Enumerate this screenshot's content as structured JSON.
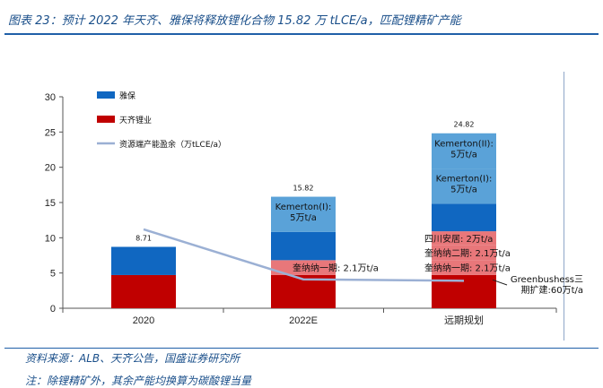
{
  "figure": {
    "title": "图表 23：预计 2022 年天齐、雅保将释放锂化合物 15.82 万 tLCE/a，匹配锂精矿产能",
    "source": "资料来源：ALB、天齐公告，国盛证券研究所",
    "note": "注：除锂精矿外，其余产能均换算为碳酸锂当量"
  },
  "colors": {
    "yabao": "#1067c1",
    "tianqi": "#c00000",
    "future_light": "#5aa2d8",
    "future_pink": "#e8777a",
    "line": "#9bb0d4"
  },
  "chart_data": {
    "type": "bar",
    "stacked": true,
    "categories": [
      "2020",
      "2022E",
      "远期规划"
    ],
    "ylim": [
      0,
      30
    ],
    "yticks": [
      0,
      5,
      10,
      15,
      20,
      25,
      30
    ],
    "legend": [
      {
        "name": "雅保",
        "kind": "bar",
        "color": "#1067c1"
      },
      {
        "name": "天齐锂业",
        "kind": "bar",
        "color": "#c00000"
      },
      {
        "name": "资源端产能盈余（万tLCE/a）",
        "kind": "line",
        "color": "#9bb0d4"
      }
    ],
    "segments": [
      {
        "category": 0,
        "y0": 0,
        "y1": 4.71,
        "color": "#c00000",
        "label": ""
      },
      {
        "category": 0,
        "y0": 4.71,
        "y1": 8.71,
        "color": "#1067c1",
        "label": ""
      },
      {
        "category": 1,
        "y0": 0,
        "y1": 4.71,
        "color": "#c00000",
        "label": ""
      },
      {
        "category": 1,
        "y0": 4.71,
        "y1": 6.82,
        "color": "#e8777a",
        "label": "奎纳纳一期: 2.1万t/a"
      },
      {
        "category": 1,
        "y0": 6.82,
        "y1": 10.82,
        "color": "#1067c1",
        "label": ""
      },
      {
        "category": 1,
        "y0": 10.82,
        "y1": 15.82,
        "color": "#5aa2d8",
        "label": "Kemerton(I):\n5万t/a"
      },
      {
        "category": 2,
        "y0": 0,
        "y1": 4.71,
        "color": "#c00000",
        "label": ""
      },
      {
        "category": 2,
        "y0": 4.71,
        "y1": 6.82,
        "color": "#e8777a",
        "label": "奎纳纳一期: 2.1万t/a"
      },
      {
        "category": 2,
        "y0": 6.82,
        "y1": 8.92,
        "color": "#e8777a",
        "label": "奎纳纳二期: 2.1万t/a"
      },
      {
        "category": 2,
        "y0": 8.92,
        "y1": 10.92,
        "color": "#e8777a",
        "label": "四川安居: 2万t/a"
      },
      {
        "category": 2,
        "y0": 10.92,
        "y1": 14.82,
        "color": "#1067c1",
        "label": ""
      },
      {
        "category": 2,
        "y0": 14.82,
        "y1": 19.82,
        "color": "#5aa2d8",
        "label": "Kemerton(I):\n5万t/a"
      },
      {
        "category": 2,
        "y0": 19.82,
        "y1": 24.82,
        "color": "#5aa2d8",
        "label": "Kemerton(II):\n5万t/a"
      }
    ],
    "totals": [
      8.71,
      15.82,
      24.82
    ],
    "line": {
      "name": "资源端产能盈余（万tLCE/a）",
      "values": [
        11.2,
        4.1,
        3.9
      ]
    },
    "annotations": [
      {
        "text": "Greenbushess三\n期扩建:60万t/a",
        "target_category": 2,
        "target_value": 3.9
      }
    ]
  }
}
